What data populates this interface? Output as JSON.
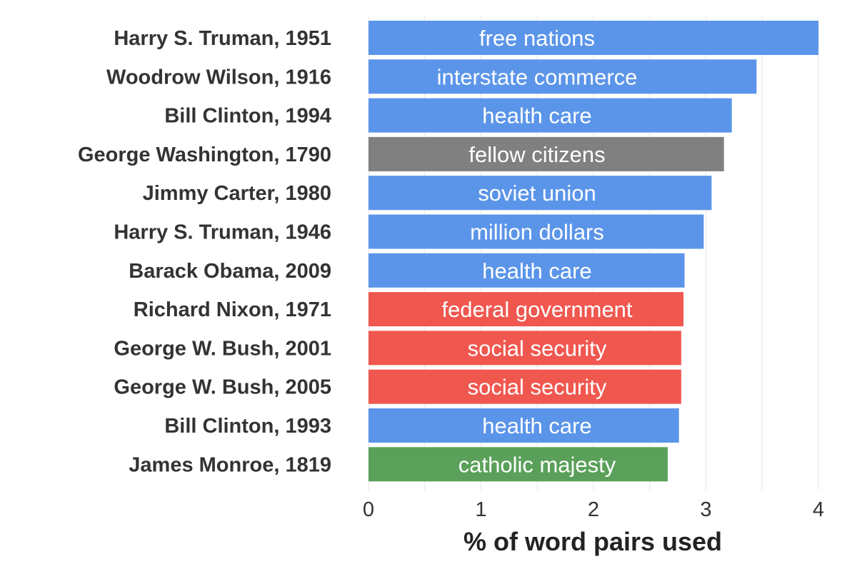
{
  "colors": {
    "blue": "#5b95e9",
    "gray": "#808080",
    "red": "#f0574f",
    "green": "#5aa05a"
  },
  "chart_data": {
    "type": "bar",
    "orientation": "horizontal",
    "xlabel": "% of word pairs used",
    "ylabel": "",
    "xlim": [
      0,
      4.05
    ],
    "xticks": [
      0,
      1,
      2,
      3,
      4
    ],
    "grid": true,
    "categories": [
      "Harry S. Truman, 1951",
      "Woodrow Wilson, 1916",
      "Bill Clinton, 1994",
      "George Washington, 1790",
      "Jimmy Carter, 1980",
      "Harry S. Truman, 1946",
      "Barack Obama, 2009",
      "Richard Nixon, 1971",
      "George W. Bush, 2001",
      "George W. Bush, 2005",
      "Bill Clinton, 1993",
      "James Monroe, 1819"
    ],
    "values": [
      4.0,
      3.45,
      3.23,
      3.16,
      3.05,
      2.98,
      2.81,
      2.8,
      2.78,
      2.78,
      2.76,
      2.66
    ],
    "bar_labels": [
      "free nations",
      "interstate commerce",
      "health care",
      "fellow citizens",
      "soviet union",
      "million dollars",
      "health care",
      "federal government",
      "social security",
      "social security",
      "health care",
      "catholic majesty"
    ],
    "bar_colors": [
      "blue",
      "blue",
      "blue",
      "gray",
      "blue",
      "blue",
      "blue",
      "red",
      "red",
      "red",
      "blue",
      "green"
    ]
  }
}
